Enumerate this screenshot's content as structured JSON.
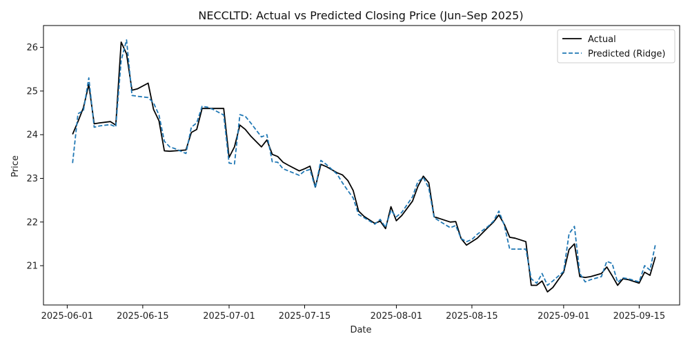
{
  "chart_data": {
    "type": "line",
    "title": "NECCLTD: Actual vs Predicted Closing Price (Jun–Sep 2025)",
    "xlabel": "Date",
    "ylabel": "Price",
    "ylim": [
      20.1,
      26.5
    ],
    "xlim_days": [
      -4.4,
      113.5
    ],
    "x_origin": "2025-06-01",
    "x_ticks": [
      {
        "day": 0,
        "label": "2025-06-01"
      },
      {
        "day": 14,
        "label": "2025-06-15"
      },
      {
        "day": 30,
        "label": "2025-07-01"
      },
      {
        "day": 44,
        "label": "2025-07-15"
      },
      {
        "day": 61,
        "label": "2025-08-01"
      },
      {
        "day": 75,
        "label": "2025-08-15"
      },
      {
        "day": 92,
        "label": "2025-09-01"
      },
      {
        "day": 106,
        "label": "2025-09-15"
      }
    ],
    "y_ticks": [
      21,
      22,
      23,
      24,
      25,
      26
    ],
    "legend": {
      "position": "top-right",
      "entries": [
        "Actual",
        "Predicted (Ridge)"
      ]
    },
    "series": [
      {
        "name": "Actual",
        "color": "#000000",
        "style": "solid",
        "days": [
          1,
          2,
          3,
          4,
          5,
          6,
          8,
          9,
          10,
          11,
          12,
          13,
          15,
          16,
          17,
          18,
          19,
          20,
          22,
          23,
          24,
          25,
          26,
          27,
          29,
          30,
          31,
          32,
          33,
          34,
          36,
          37,
          38,
          39,
          40,
          41,
          43,
          44,
          45,
          46,
          47,
          48,
          50,
          51,
          52,
          53,
          54,
          55,
          57,
          58,
          59,
          60,
          61,
          62,
          64,
          65,
          66,
          67,
          68,
          69,
          71,
          72,
          73,
          74,
          75,
          76,
          78,
          79,
          80,
          81,
          82,
          83,
          85,
          86,
          87,
          88,
          89,
          90,
          92,
          93,
          94,
          95,
          96,
          97,
          99,
          100,
          101,
          102,
          103,
          104,
          106,
          107,
          108,
          109
        ],
        "values": [
          24.01,
          24.3,
          24.62,
          25.15,
          24.25,
          24.27,
          24.3,
          24.22,
          26.12,
          25.85,
          25.02,
          25.05,
          25.18,
          24.58,
          24.32,
          23.63,
          23.62,
          23.63,
          23.65,
          24.05,
          24.12,
          24.6,
          24.6,
          24.6,
          24.6,
          23.48,
          23.72,
          24.22,
          24.12,
          23.97,
          23.72,
          23.88,
          23.55,
          23.5,
          23.37,
          23.3,
          23.17,
          23.22,
          23.28,
          22.8,
          23.32,
          23.27,
          23.13,
          23.08,
          22.95,
          22.72,
          22.25,
          22.13,
          21.97,
          22.02,
          21.85,
          22.35,
          22.03,
          22.15,
          22.48,
          22.82,
          23.05,
          22.9,
          22.12,
          22.08,
          22.0,
          22.01,
          21.62,
          21.47,
          21.55,
          21.63,
          21.88,
          22.0,
          22.16,
          21.95,
          21.65,
          21.63,
          21.55,
          20.55,
          20.55,
          20.65,
          20.4,
          20.5,
          20.85,
          21.37,
          21.5,
          20.75,
          20.73,
          20.75,
          20.82,
          20.97,
          20.77,
          20.55,
          20.7,
          20.68,
          20.6,
          20.85,
          20.78,
          21.2
        ]
      },
      {
        "name": "Predicted (Ridge)",
        "color": "#1f77b4",
        "style": "dashed",
        "days": [
          1,
          2,
          3,
          4,
          5,
          6,
          8,
          9,
          10,
          11,
          12,
          13,
          15,
          16,
          17,
          18,
          19,
          20,
          22,
          23,
          24,
          25,
          26,
          27,
          29,
          30,
          31,
          32,
          33,
          34,
          36,
          37,
          38,
          39,
          40,
          41,
          43,
          44,
          45,
          46,
          47,
          48,
          50,
          51,
          52,
          53,
          54,
          55,
          57,
          58,
          59,
          60,
          61,
          62,
          64,
          65,
          66,
          67,
          68,
          69,
          71,
          72,
          73,
          74,
          75,
          76,
          78,
          79,
          80,
          81,
          82,
          83,
          85,
          86,
          87,
          88,
          89,
          90,
          92,
          93,
          94,
          95,
          96,
          97,
          99,
          100,
          101,
          102,
          103,
          104,
          106,
          107,
          108,
          109
        ],
        "values": [
          23.35,
          24.48,
          24.55,
          25.3,
          24.17,
          24.2,
          24.23,
          24.18,
          25.7,
          26.17,
          24.9,
          24.88,
          24.85,
          24.73,
          24.45,
          23.85,
          23.72,
          23.68,
          23.57,
          24.17,
          24.27,
          24.65,
          24.63,
          24.58,
          24.45,
          23.35,
          23.33,
          24.46,
          24.42,
          24.27,
          23.95,
          24.0,
          23.38,
          23.37,
          23.22,
          23.17,
          23.07,
          23.17,
          23.2,
          22.78,
          23.41,
          23.32,
          23.1,
          22.9,
          22.72,
          22.55,
          22.17,
          22.1,
          21.95,
          22.06,
          21.88,
          22.27,
          22.12,
          22.22,
          22.58,
          22.93,
          23.02,
          22.78,
          22.1,
          22.02,
          21.87,
          21.92,
          21.62,
          21.55,
          21.6,
          21.72,
          21.9,
          22.02,
          22.25,
          21.93,
          21.38,
          21.38,
          21.38,
          20.7,
          20.6,
          20.82,
          20.55,
          20.65,
          20.87,
          21.73,
          21.9,
          20.82,
          20.63,
          20.68,
          20.75,
          21.1,
          21.05,
          20.62,
          20.72,
          20.7,
          20.63,
          21.0,
          20.9,
          21.48
        ]
      }
    ]
  }
}
